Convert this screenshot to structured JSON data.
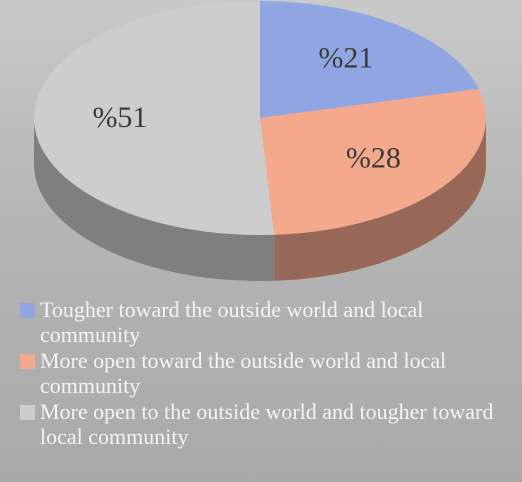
{
  "chart_data": {
    "type": "pie",
    "categories": [
      "Tougher toward the outside world and local community",
      "More open toward the outside world and local community",
      "More open to the outside world and tougher toward local community"
    ],
    "values": [
      21,
      28,
      51
    ],
    "value_labels": [
      "%21",
      "%28",
      "%51"
    ],
    "colors": [
      "#8fa6e2",
      "#f4a88c",
      "#cdcdcd"
    ],
    "legend": "bottom"
  }
}
